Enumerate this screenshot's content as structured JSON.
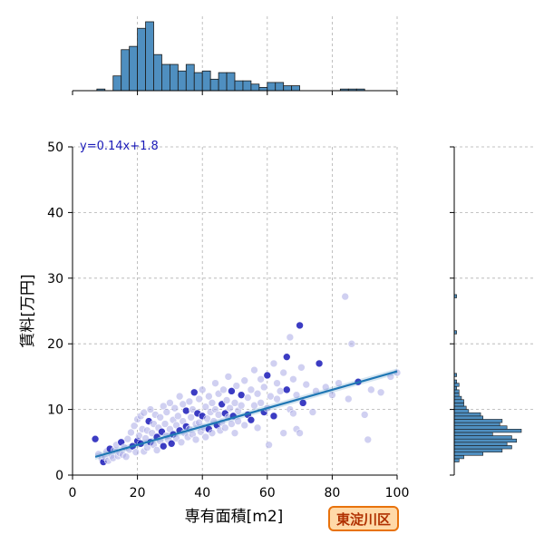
{
  "chart_data": {
    "type": "scatter",
    "xlabel": "専有面積[m2]",
    "ylabel": "賃料[万円]",
    "xlim": [
      0,
      100
    ],
    "ylim": [
      0,
      50
    ],
    "x_ticks": [
      0,
      20,
      40,
      60,
      80,
      100
    ],
    "y_ticks": [
      0,
      10,
      20,
      30,
      40,
      50
    ],
    "grid": true,
    "regression": {
      "slope": 0.14,
      "intercept": 1.8,
      "x_range": [
        7,
        100
      ],
      "label": "y=0.14x+1.8"
    },
    "series": [
      {
        "points": [
          [
            7,
            5.5
          ],
          [
            8,
            3.2
          ],
          [
            9,
            2.5
          ],
          [
            9.5,
            2.0
          ],
          [
            10,
            2.8
          ],
          [
            10.5,
            3.6
          ],
          [
            11,
            2.2
          ],
          [
            11.5,
            4.0
          ],
          [
            12,
            3.0
          ],
          [
            12.5,
            2.6
          ],
          [
            13,
            3.8
          ],
          [
            13.5,
            4.6
          ],
          [
            14,
            2.9
          ],
          [
            14.5,
            3.4
          ],
          [
            15,
            5.0
          ],
          [
            15.5,
            3.1
          ],
          [
            16,
            4.2
          ],
          [
            16.5,
            2.8
          ],
          [
            17,
            5.5
          ],
          [
            17.5,
            3.9
          ],
          [
            18,
            6.5
          ],
          [
            18.5,
            4.4
          ],
          [
            19,
            7.5
          ],
          [
            19.5,
            3.5
          ],
          [
            20,
            8.5
          ],
          [
            20,
            5.2
          ],
          [
            20.5,
            6.0
          ],
          [
            21,
            9.0
          ],
          [
            21,
            4.8
          ],
          [
            21.5,
            7.0
          ],
          [
            22,
            3.6
          ],
          [
            22,
            9.5
          ],
          [
            22.5,
            5.6
          ],
          [
            23,
            6.8
          ],
          [
            23,
            4.2
          ],
          [
            23.5,
            8.2
          ],
          [
            24,
            5.0
          ],
          [
            24,
            10.0
          ],
          [
            24.5,
            6.4
          ],
          [
            25,
            7.8
          ],
          [
            25,
            4.6
          ],
          [
            25.5,
            9.2
          ],
          [
            26,
            5.8
          ],
          [
            26,
            3.8
          ],
          [
            26.5,
            7.2
          ],
          [
            27,
            8.8
          ],
          [
            27,
            5.2
          ],
          [
            27.5,
            6.6
          ],
          [
            28,
            10.5
          ],
          [
            28,
            4.4
          ],
          [
            28.5,
            7.8
          ],
          [
            29,
            6.0
          ],
          [
            29,
            9.6
          ],
          [
            29.5,
            5.4
          ],
          [
            30,
            11.0
          ],
          [
            30,
            7.0
          ],
          [
            30.5,
            4.8
          ],
          [
            31,
            8.4
          ],
          [
            31,
            6.2
          ],
          [
            31.5,
            10.2
          ],
          [
            32,
            5.6
          ],
          [
            32,
            7.6
          ],
          [
            32.5,
            9.0
          ],
          [
            33,
            6.8
          ],
          [
            33,
            12.0
          ],
          [
            33.5,
            5.0
          ],
          [
            34,
            8.2
          ],
          [
            34,
            10.8
          ],
          [
            34.5,
            6.4
          ],
          [
            35,
            7.4
          ],
          [
            35,
            9.8
          ],
          [
            35.5,
            5.8
          ],
          [
            36,
            11.2
          ],
          [
            36,
            7.0
          ],
          [
            36.5,
            8.8
          ],
          [
            37,
            6.2
          ],
          [
            37,
            10.0
          ],
          [
            37.5,
            12.6
          ],
          [
            38,
            7.8
          ],
          [
            38,
            5.4
          ],
          [
            38.5,
            9.4
          ],
          [
            39,
            8.0
          ],
          [
            39,
            11.6
          ],
          [
            39.5,
            6.6
          ],
          [
            40,
            9.0
          ],
          [
            40,
            13.0
          ],
          [
            40.5,
            7.2
          ],
          [
            41,
            10.4
          ],
          [
            41,
            5.8
          ],
          [
            41.5,
            8.6
          ],
          [
            42,
            12.0
          ],
          [
            42,
            7.0
          ],
          [
            42.5,
            9.6
          ],
          [
            43,
            6.4
          ],
          [
            43,
            11.0
          ],
          [
            43.5,
            8.2
          ],
          [
            44,
            10.0
          ],
          [
            44,
            14.0
          ],
          [
            44.5,
            7.6
          ],
          [
            45,
            9.2
          ],
          [
            45,
            12.4
          ],
          [
            45.5,
            6.8
          ],
          [
            46,
            10.8
          ],
          [
            46,
            8.0
          ],
          [
            46.5,
            13.0
          ],
          [
            47,
            9.4
          ],
          [
            47,
            7.2
          ],
          [
            47.5,
            11.4
          ],
          [
            48,
            8.8
          ],
          [
            48,
            15.0
          ],
          [
            48.5,
            10.2
          ],
          [
            49,
            7.8
          ],
          [
            49,
            12.8
          ],
          [
            49.5,
            9.0
          ],
          [
            50,
            11.0
          ],
          [
            50,
            6.4
          ],
          [
            50.5,
            13.6
          ],
          [
            51,
            9.8
          ],
          [
            51,
            8.2
          ],
          [
            52,
            12.2
          ],
          [
            52,
            10.6
          ],
          [
            53,
            7.6
          ],
          [
            53,
            14.4
          ],
          [
            54,
            11.8
          ],
          [
            54,
            9.2
          ],
          [
            55,
            13.0
          ],
          [
            55,
            8.4
          ],
          [
            56,
            10.6
          ],
          [
            56,
            16.0
          ],
          [
            57,
            12.4
          ],
          [
            57,
            7.2
          ],
          [
            58,
            14.6
          ],
          [
            58,
            11.0
          ],
          [
            59,
            9.6
          ],
          [
            59,
            13.4
          ],
          [
            60,
            15.2
          ],
          [
            60,
            10.2
          ],
          [
            60.5,
            4.6
          ],
          [
            61,
            12.0
          ],
          [
            62,
            17.0
          ],
          [
            62,
            9.0
          ],
          [
            63,
            14.0
          ],
          [
            63,
            11.6
          ],
          [
            64,
            12.8
          ],
          [
            65,
            15.6
          ],
          [
            65,
            6.4
          ],
          [
            66,
            18.0
          ],
          [
            66,
            13.0
          ],
          [
            67,
            10.0
          ],
          [
            67,
            21.0
          ],
          [
            68,
            14.6
          ],
          [
            68,
            9.4
          ],
          [
            69,
            12.2
          ],
          [
            69,
            7.0
          ],
          [
            70,
            22.8
          ],
          [
            70,
            6.4
          ],
          [
            70.5,
            16.4
          ],
          [
            71,
            11.0
          ],
          [
            72,
            13.8
          ],
          [
            74,
            9.6
          ],
          [
            75,
            12.8
          ],
          [
            76,
            17.0
          ],
          [
            78,
            13.4
          ],
          [
            80,
            12.2
          ],
          [
            82,
            14.0
          ],
          [
            84,
            27.2
          ],
          [
            85,
            11.6
          ],
          [
            86,
            20.0
          ],
          [
            88,
            14.2
          ],
          [
            90,
            9.2
          ],
          [
            91,
            5.4
          ],
          [
            92,
            13.0
          ],
          [
            95,
            12.6
          ],
          [
            98,
            15.0
          ],
          [
            100,
            15.6
          ]
        ]
      }
    ],
    "top_histogram": {
      "bin_width": 2.5,
      "bins": [
        {
          "x0": 7.5,
          "count": 1
        },
        {
          "x0": 10,
          "count": 0
        },
        {
          "x0": 12.5,
          "count": 9
        },
        {
          "x0": 15,
          "count": 25
        },
        {
          "x0": 17.5,
          "count": 27
        },
        {
          "x0": 20,
          "count": 38
        },
        {
          "x0": 22.5,
          "count": 42
        },
        {
          "x0": 25,
          "count": 22
        },
        {
          "x0": 27.5,
          "count": 16
        },
        {
          "x0": 30,
          "count": 16
        },
        {
          "x0": 32.5,
          "count": 12
        },
        {
          "x0": 35,
          "count": 16
        },
        {
          "x0": 37.5,
          "count": 11
        },
        {
          "x0": 40,
          "count": 12
        },
        {
          "x0": 42.5,
          "count": 7
        },
        {
          "x0": 45,
          "count": 11
        },
        {
          "x0": 47.5,
          "count": 11
        },
        {
          "x0": 50,
          "count": 6
        },
        {
          "x0": 52.5,
          "count": 6
        },
        {
          "x0": 55,
          "count": 4
        },
        {
          "x0": 57.5,
          "count": 2
        },
        {
          "x0": 60,
          "count": 5
        },
        {
          "x0": 62.5,
          "count": 5
        },
        {
          "x0": 65,
          "count": 3
        },
        {
          "x0": 67.5,
          "count": 3
        },
        {
          "x0": 82.5,
          "count": 1
        },
        {
          "x0": 85,
          "count": 1
        },
        {
          "x0": 87.5,
          "count": 1
        }
      ]
    },
    "right_histogram": {
      "bin_width": 0.5,
      "bins": [
        {
          "y0": 2.0,
          "count": 2
        },
        {
          "y0": 2.5,
          "count": 4
        },
        {
          "y0": 3.0,
          "count": 12
        },
        {
          "y0": 3.5,
          "count": 20
        },
        {
          "y0": 4.0,
          "count": 24
        },
        {
          "y0": 4.5,
          "count": 22
        },
        {
          "y0": 5.0,
          "count": 26
        },
        {
          "y0": 5.5,
          "count": 24
        },
        {
          "y0": 6.0,
          "count": 16
        },
        {
          "y0": 6.5,
          "count": 28
        },
        {
          "y0": 7.0,
          "count": 22
        },
        {
          "y0": 7.5,
          "count": 19
        },
        {
          "y0": 8.0,
          "count": 20
        },
        {
          "y0": 8.5,
          "count": 12
        },
        {
          "y0": 9.0,
          "count": 11
        },
        {
          "y0": 9.5,
          "count": 6
        },
        {
          "y0": 10.0,
          "count": 5
        },
        {
          "y0": 10.5,
          "count": 4
        },
        {
          "y0": 11.0,
          "count": 4
        },
        {
          "y0": 11.5,
          "count": 3
        },
        {
          "y0": 12.0,
          "count": 2
        },
        {
          "y0": 12.5,
          "count": 2
        },
        {
          "y0": 13.0,
          "count": 1
        },
        {
          "y0": 13.5,
          "count": 2
        },
        {
          "y0": 14.0,
          "count": 1
        },
        {
          "y0": 15.0,
          "count": 1
        },
        {
          "y0": 21.5,
          "count": 1
        },
        {
          "y0": 27.0,
          "count": 1
        }
      ]
    }
  },
  "region_label": "東淀川区",
  "colors": {
    "point_light": "#a9a9e6",
    "point_dark": "#1a1ab8",
    "regression_line": "#1f77b4",
    "histogram_fill": "#4f8fc0",
    "histogram_edge": "#1b1b1b",
    "equation_text": "#1a1ab8",
    "grid": "#b0b0b0"
  }
}
